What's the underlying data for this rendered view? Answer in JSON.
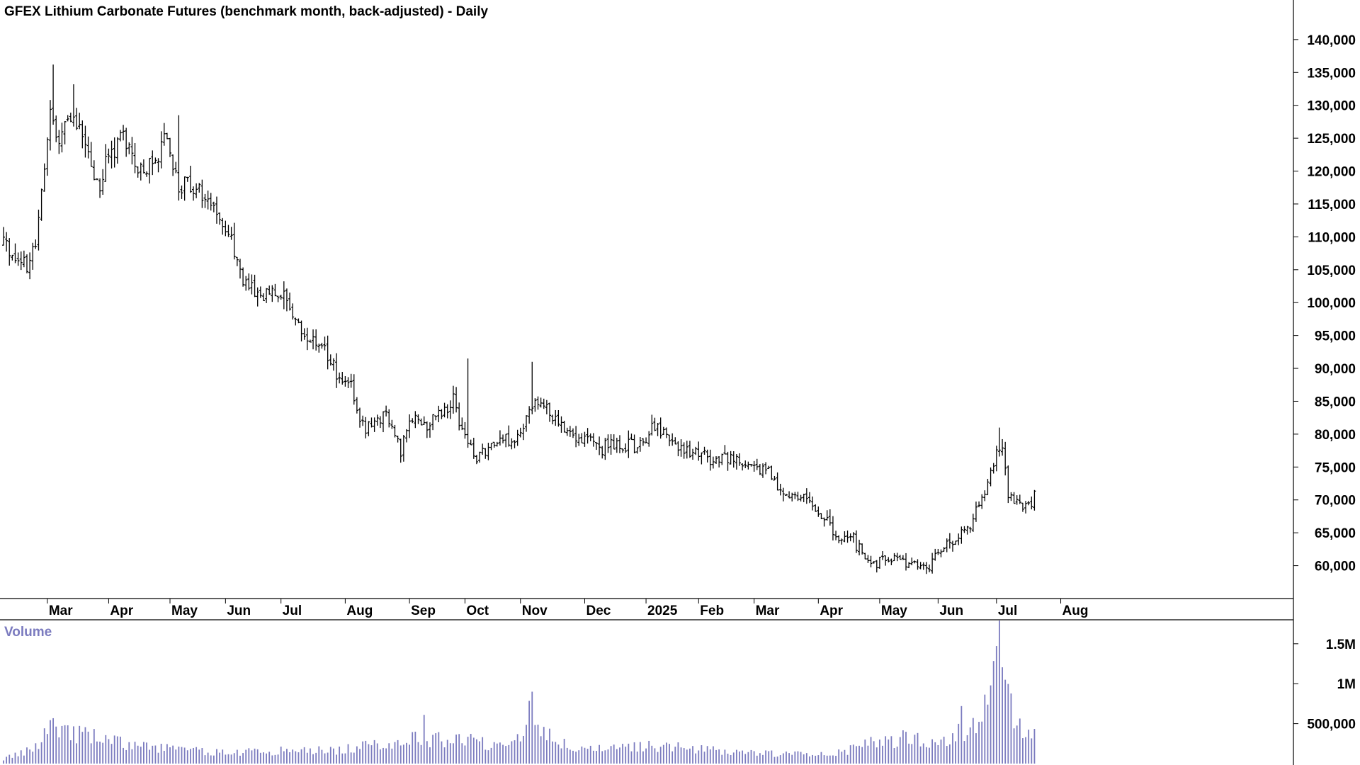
{
  "chart_data": {
    "type": "ohlc",
    "title": "GFEX Lithium Carbonate Futures (benchmark month, back-adjusted) - Daily",
    "price_axis": {
      "range": [
        55000,
        143000
      ],
      "ticks": [
        60000,
        65000,
        70000,
        75000,
        80000,
        85000,
        90000,
        95000,
        100000,
        105000,
        110000,
        115000,
        120000,
        125000,
        130000,
        135000,
        140000
      ],
      "tick_labels": [
        "60,000",
        "65,000",
        "70,000",
        "75,000",
        "80,000",
        "85,000",
        "90,000",
        "95,000",
        "100,000",
        "105,000",
        "110,000",
        "115,000",
        "120,000",
        "125,000",
        "130,000",
        "135,000",
        "140,000"
      ]
    },
    "x_axis": {
      "labels": [
        "Mar",
        "Apr",
        "May",
        "Jun",
        "Jul",
        "Aug",
        "Sep",
        "Oct",
        "Nov",
        "Dec",
        "2025",
        "Feb",
        "Mar",
        "Apr",
        "May",
        "Jun",
        "Jul",
        "Aug"
      ],
      "label_positions_bar_index": [
        0,
        21,
        42,
        61,
        80,
        102,
        124,
        143,
        162,
        184,
        205,
        223,
        242,
        264,
        285,
        305,
        325,
        347
      ]
    },
    "bar_count": 355,
    "anchors": [
      [
        -15,
        109000
      ],
      [
        -8,
        106000
      ],
      [
        -7,
        104500
      ],
      [
        -4,
        110000
      ],
      [
        -2,
        117000
      ],
      [
        0,
        125000
      ],
      [
        1,
        129000
      ],
      [
        3,
        125000
      ],
      [
        8,
        128000
      ],
      [
        12,
        126000
      ],
      [
        15,
        120000
      ],
      [
        18,
        118000
      ],
      [
        22,
        123000
      ],
      [
        26,
        126000
      ],
      [
        29,
        121000
      ],
      [
        33,
        120000
      ],
      [
        37,
        122000
      ],
      [
        40,
        126000
      ],
      [
        43,
        121000
      ],
      [
        46,
        117000
      ],
      [
        49,
        118000
      ],
      [
        55,
        116000
      ],
      [
        62,
        111000
      ],
      [
        67,
        103000
      ],
      [
        72,
        101000
      ],
      [
        76,
        102000
      ],
      [
        82,
        100000
      ],
      [
        86,
        96000
      ],
      [
        92,
        94000
      ],
      [
        96,
        92000
      ],
      [
        100,
        88000
      ],
      [
        104,
        87000
      ],
      [
        108,
        81000
      ],
      [
        113,
        81500
      ],
      [
        116,
        84000
      ],
      [
        119,
        80000
      ],
      [
        121,
        77000
      ],
      [
        125,
        83000
      ],
      [
        128,
        81000
      ],
      [
        134,
        83000
      ],
      [
        139,
        85000
      ],
      [
        143,
        80000
      ],
      [
        147,
        76000
      ],
      [
        150,
        77000
      ],
      [
        153,
        78500
      ],
      [
        158,
        79000
      ],
      [
        162,
        80000
      ],
      [
        165,
        85000
      ],
      [
        170,
        84500
      ],
      [
        173,
        82000
      ],
      [
        178,
        81000
      ],
      [
        181,
        80000
      ],
      [
        185,
        79500
      ],
      [
        190,
        78000
      ],
      [
        197,
        78500
      ],
      [
        201,
        78000
      ],
      [
        206,
        80000
      ],
      [
        208,
        81000
      ],
      [
        212,
        79500
      ],
      [
        218,
        77500
      ],
      [
        223,
        77000
      ],
      [
        229,
        76000
      ],
      [
        235,
        76500
      ],
      [
        240,
        74500
      ],
      [
        246,
        75000
      ],
      [
        249,
        73500
      ],
      [
        250,
        71000
      ],
      [
        256,
        71000
      ],
      [
        261,
        70000
      ],
      [
        266,
        67000
      ],
      [
        270,
        64500
      ],
      [
        276,
        64000
      ],
      [
        280,
        61000
      ],
      [
        285,
        60500
      ],
      [
        290,
        61000
      ],
      [
        294,
        60500
      ],
      [
        299,
        60000
      ],
      [
        302,
        60000
      ],
      [
        305,
        62000
      ],
      [
        310,
        64000
      ],
      [
        314,
        65000
      ],
      [
        317,
        67000
      ],
      [
        320,
        70000
      ],
      [
        323,
        74000
      ],
      [
        325,
        77000
      ],
      [
        327,
        78000
      ],
      [
        329,
        71000
      ],
      [
        331,
        70000
      ],
      [
        334,
        68500
      ],
      [
        337,
        69500
      ],
      [
        338,
        71000
      ]
    ],
    "notable_highs": [
      {
        "bar": 2,
        "high": 136200
      },
      {
        "bar": 9,
        "high": 133200
      },
      {
        "bar": 45,
        "high": 128500
      },
      {
        "bar": 144,
        "high": 91500
      },
      {
        "bar": 166,
        "high": 91000
      },
      {
        "bar": 326,
        "high": 81000
      }
    ],
    "volume": {
      "label": "Volume",
      "range": [
        0,
        1800000
      ],
      "ticks": [
        500000,
        1000000,
        1500000
      ],
      "tick_labels": [
        "500,000",
        "1M",
        "1.5M"
      ],
      "anchors": [
        [
          -15,
          60000
        ],
        [
          -7,
          150000
        ],
        [
          -2,
          280000
        ],
        [
          0,
          480000
        ],
        [
          2,
          600000
        ],
        [
          5,
          420000
        ],
        [
          10,
          380000
        ],
        [
          20,
          300000
        ],
        [
          30,
          220000
        ],
        [
          40,
          200000
        ],
        [
          50,
          160000
        ],
        [
          60,
          140000
        ],
        [
          80,
          160000
        ],
        [
          100,
          170000
        ],
        [
          110,
          220000
        ],
        [
          120,
          280000
        ],
        [
          126,
          330000
        ],
        [
          130,
          280000
        ],
        [
          140,
          330000
        ],
        [
          150,
          250000
        ],
        [
          160,
          300000
        ],
        [
          164,
          500000
        ],
        [
          165,
          620000
        ],
        [
          166,
          750000
        ],
        [
          167,
          560000
        ],
        [
          170,
          480000
        ],
        [
          175,
          250000
        ],
        [
          185,
          170000
        ],
        [
          195,
          180000
        ],
        [
          205,
          230000
        ],
        [
          215,
          200000
        ],
        [
          230,
          160000
        ],
        [
          250,
          120000
        ],
        [
          265,
          120000
        ],
        [
          275,
          170000
        ],
        [
          285,
          280000
        ],
        [
          295,
          320000
        ],
        [
          305,
          260000
        ],
        [
          312,
          380000
        ],
        [
          318,
          480000
        ],
        [
          322,
          850000
        ],
        [
          324,
          1150000
        ],
        [
          326,
          1650000
        ],
        [
          327,
          1000000
        ],
        [
          330,
          700000
        ],
        [
          334,
          380000
        ],
        [
          338,
          450000
        ]
      ],
      "notable_spikes": [
        {
          "bar": 129,
          "volume": 610000
        },
        {
          "bar": 166,
          "volume": 900000
        },
        {
          "bar": 313,
          "volume": 720000
        },
        {
          "bar": 326,
          "volume": 1790000
        }
      ]
    },
    "colors": {
      "price_bars": "#000000",
      "volume_bars": "#7b7bbf",
      "volume_label": "#7b7bbf"
    }
  }
}
